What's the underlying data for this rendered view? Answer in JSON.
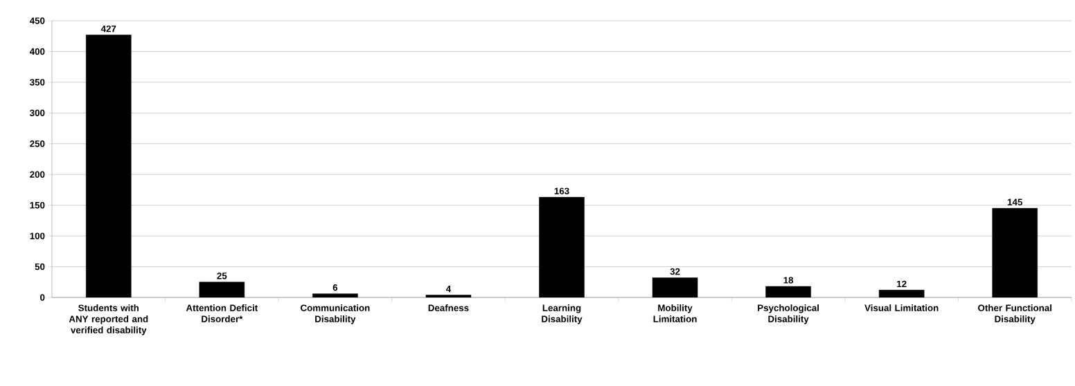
{
  "chart_data": {
    "type": "bar",
    "categories": [
      "Students with ANY reported and verified disability",
      "Attention Deficit Disorder*",
      "Communication Disability",
      "Deafness",
      "Learning Disability",
      "Mobility Limitation",
      "Psychological Disability",
      "Visual Limitation",
      "Other Functional Disability"
    ],
    "values": [
      427,
      25,
      6,
      4,
      163,
      32,
      18,
      12,
      145
    ],
    "color": "#000000",
    "ylim": [
      0,
      450
    ],
    "yticks": [
      0,
      50,
      100,
      150,
      200,
      250,
      300,
      350,
      400,
      450
    ],
    "grid": "y",
    "data_labels": true
  }
}
